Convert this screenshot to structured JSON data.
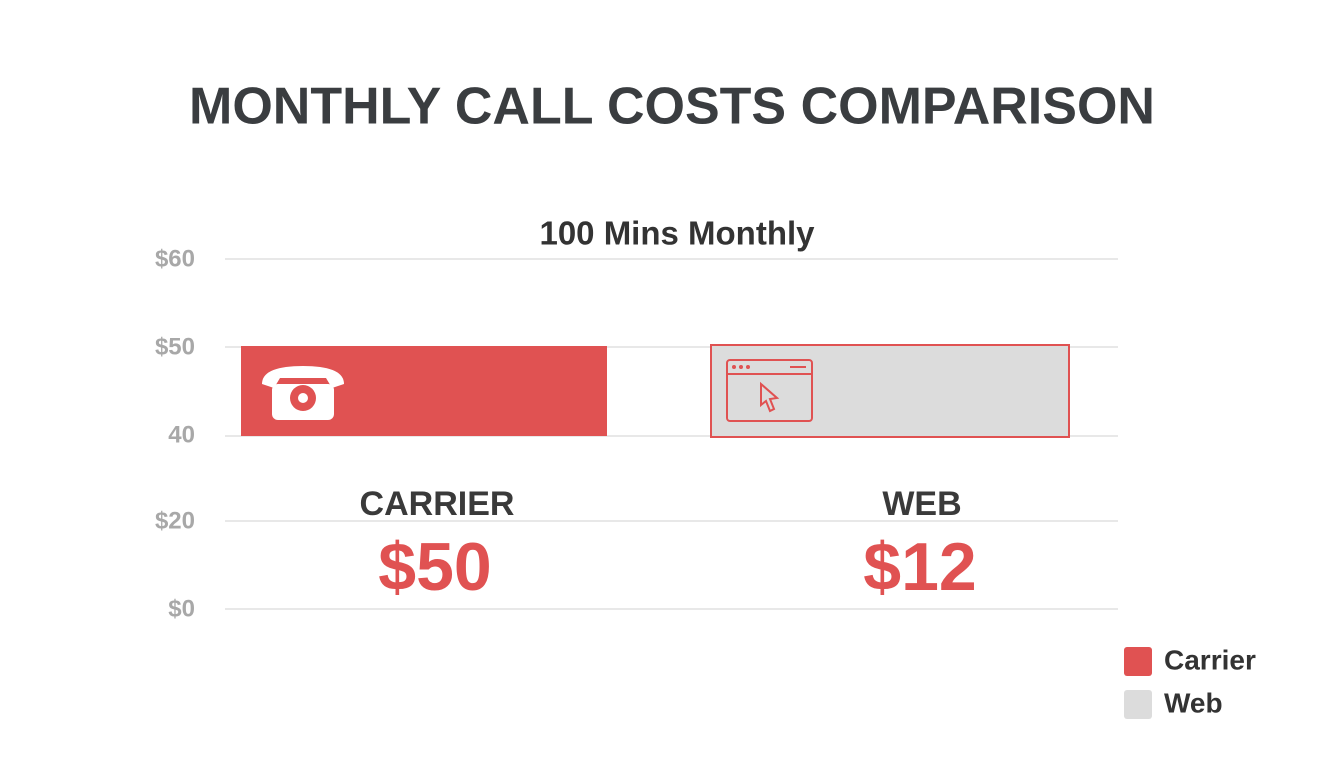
{
  "title": "MONTHLY CALL COSTS COMPARISON",
  "subtitle": "100 Mins Monthly",
  "axis_labels": [
    "$60",
    "$50",
    "40",
    "$20",
    "$0"
  ],
  "panels": [
    {
      "name": "CARRIER",
      "value_label": "$50"
    },
    {
      "name": "WEB",
      "value_label": "$12"
    }
  ],
  "legend": [
    {
      "name": "Carrier",
      "color": "#e05252"
    },
    {
      "name": "Web",
      "color": "#dcdcdc"
    }
  ]
}
